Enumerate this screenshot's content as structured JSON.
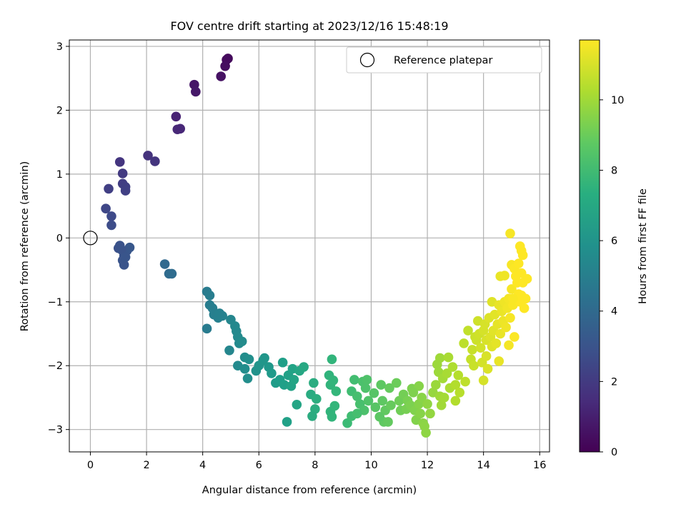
{
  "chart_data": {
    "type": "scatter",
    "title": "FOV centre drift starting at 2023/12/16 15:48:19",
    "xlabel": "Angular distance from reference (arcmin)",
    "ylabel": "Rotation from reference (arcmin)",
    "xlim": [
      -0.75,
      16.35
    ],
    "ylim": [
      -3.35,
      3.1
    ],
    "xticks": [
      "0",
      "2",
      "4",
      "6",
      "8",
      "10",
      "12",
      "14",
      "16"
    ],
    "xtick_values": [
      0,
      2,
      4,
      6,
      8,
      10,
      12,
      14,
      16
    ],
    "yticks": [
      "−3",
      "−2",
      "−1",
      "0",
      "1",
      "2",
      "3"
    ],
    "ytick_values": [
      -3,
      -2,
      -1,
      0,
      1,
      2,
      3
    ],
    "grid": true,
    "legend": {
      "placement": "top-right",
      "entries": [
        {
          "label": "Reference platepar",
          "marker": "open-circle"
        }
      ]
    },
    "reference_point": {
      "x": 0,
      "y": 0
    },
    "colorbar": {
      "label": "Hours from first FF file",
      "colormap": "viridis",
      "range": [
        0,
        11.7
      ],
      "ticks": [
        "0",
        "2",
        "4",
        "6",
        "8",
        "10"
      ],
      "tick_values": [
        0,
        2,
        4,
        6,
        8,
        10
      ]
    },
    "series": [
      {
        "columns": [
          "x",
          "y",
          "hours"
        ],
        "points": [
          [
            4.9,
            2.81
          ],
          [
            4.85,
            2.79
          ],
          [
            4.8,
            2.69
          ],
          [
            4.65,
            2.53
          ],
          [
            3.7,
            2.4
          ],
          [
            3.75,
            2.29
          ],
          [
            3.05,
            1.9
          ],
          [
            3.1,
            1.7
          ],
          [
            3.2,
            1.71
          ],
          [
            2.05,
            1.29
          ],
          [
            2.3,
            1.2
          ],
          [
            1.05,
            1.19
          ],
          [
            1.15,
            1.01
          ],
          [
            1.15,
            0.85
          ],
          [
            1.25,
            0.8
          ],
          [
            1.25,
            0.74
          ],
          [
            0.65,
            0.77
          ],
          [
            0.55,
            0.46
          ],
          [
            0.75,
            0.34
          ],
          [
            0.75,
            0.2
          ],
          [
            1.0,
            -0.16
          ],
          [
            1.05,
            -0.12
          ],
          [
            1.15,
            -0.2
          ],
          [
            1.2,
            -0.28
          ],
          [
            1.3,
            -0.2
          ],
          [
            1.4,
            -0.15
          ],
          [
            1.15,
            -0.35
          ],
          [
            1.2,
            -0.42
          ],
          [
            1.1,
            -0.18
          ],
          [
            1.25,
            -0.3
          ],
          [
            2.65,
            -0.41
          ],
          [
            2.8,
            -0.56
          ],
          [
            2.9,
            -0.56
          ],
          [
            4.15,
            -0.84
          ],
          [
            4.25,
            -0.9
          ],
          [
            4.25,
            -1.05
          ],
          [
            4.35,
            -1.1
          ],
          [
            4.4,
            -1.2
          ],
          [
            4.55,
            -1.25
          ],
          [
            4.7,
            -1.22
          ],
          [
            4.6,
            -1.18
          ],
          [
            4.15,
            -1.42
          ],
          [
            5.0,
            -1.28
          ],
          [
            5.15,
            -1.38
          ],
          [
            5.2,
            -1.46
          ],
          [
            5.25,
            -1.55
          ],
          [
            5.3,
            -1.65
          ],
          [
            5.4,
            -1.62
          ],
          [
            4.95,
            -1.76
          ],
          [
            5.5,
            -1.87
          ],
          [
            5.65,
            -1.9
          ],
          [
            5.25,
            -2.0
          ],
          [
            5.5,
            -2.05
          ],
          [
            5.6,
            -2.2
          ],
          [
            5.9,
            -2.08
          ],
          [
            6.0,
            -2.0
          ],
          [
            6.15,
            -1.92
          ],
          [
            6.2,
            -1.88
          ],
          [
            6.35,
            -2.02
          ],
          [
            6.45,
            -2.12
          ],
          [
            6.6,
            -2.27
          ],
          [
            6.75,
            -2.22
          ],
          [
            6.9,
            -2.3
          ],
          [
            6.85,
            -1.95
          ],
          [
            7.05,
            -2.15
          ],
          [
            7.2,
            -2.05
          ],
          [
            7.15,
            -2.32
          ],
          [
            7.25,
            -2.22
          ],
          [
            7.45,
            -2.08
          ],
          [
            7.6,
            -2.02
          ],
          [
            7.35,
            -2.61
          ],
          [
            7.0,
            -2.88
          ],
          [
            7.85,
            -2.45
          ],
          [
            7.95,
            -2.27
          ],
          [
            8.05,
            -2.52
          ],
          [
            8.0,
            -2.68
          ],
          [
            7.9,
            -2.79
          ],
          [
            8.5,
            -2.15
          ],
          [
            8.55,
            -2.3
          ],
          [
            8.65,
            -2.23
          ],
          [
            8.6,
            -1.9
          ],
          [
            8.75,
            -2.4
          ],
          [
            8.55,
            -2.72
          ],
          [
            8.7,
            -2.63
          ],
          [
            8.6,
            -2.8
          ],
          [
            9.15,
            -2.9
          ],
          [
            9.3,
            -2.79
          ],
          [
            9.4,
            -2.22
          ],
          [
            9.3,
            -2.4
          ],
          [
            9.5,
            -2.48
          ],
          [
            9.6,
            -2.6
          ],
          [
            9.7,
            -2.25
          ],
          [
            9.8,
            -2.35
          ],
          [
            9.75,
            -2.7
          ],
          [
            9.9,
            -2.55
          ],
          [
            9.5,
            -2.75
          ],
          [
            9.85,
            -2.22
          ],
          [
            10.1,
            -2.43
          ],
          [
            10.15,
            -2.65
          ],
          [
            10.35,
            -2.3
          ],
          [
            10.4,
            -2.55
          ],
          [
            10.5,
            -2.7
          ],
          [
            10.45,
            -2.88
          ],
          [
            10.6,
            -2.88
          ],
          [
            10.3,
            -2.8
          ],
          [
            10.7,
            -2.62
          ],
          [
            10.65,
            -2.35
          ],
          [
            10.9,
            -2.27
          ],
          [
            11.0,
            -2.55
          ],
          [
            11.05,
            -2.7
          ],
          [
            11.15,
            -2.45
          ],
          [
            11.25,
            -2.68
          ],
          [
            11.3,
            -2.55
          ],
          [
            11.4,
            -2.62
          ],
          [
            11.45,
            -2.36
          ],
          [
            11.55,
            -2.7
          ],
          [
            11.6,
            -2.85
          ],
          [
            11.7,
            -2.6
          ],
          [
            11.75,
            -2.75
          ],
          [
            11.85,
            -2.9
          ],
          [
            11.9,
            -2.95
          ],
          [
            11.95,
            -3.05
          ],
          [
            11.8,
            -2.5
          ],
          [
            11.7,
            -2.32
          ],
          [
            11.5,
            -2.42
          ],
          [
            12.0,
            -2.6
          ],
          [
            12.1,
            -2.75
          ],
          [
            12.2,
            -2.42
          ],
          [
            12.3,
            -2.3
          ],
          [
            12.45,
            -2.48
          ],
          [
            12.5,
            -2.62
          ],
          [
            12.6,
            -2.5
          ],
          [
            12.4,
            -2.1
          ],
          [
            12.45,
            -1.88
          ],
          [
            12.35,
            -1.98
          ],
          [
            12.55,
            -2.2
          ],
          [
            12.7,
            -2.12
          ],
          [
            12.8,
            -2.35
          ],
          [
            12.75,
            -1.87
          ],
          [
            12.9,
            -2.02
          ],
          [
            13.0,
            -2.3
          ],
          [
            13.1,
            -2.15
          ],
          [
            13.0,
            -2.55
          ],
          [
            13.15,
            -2.42
          ],
          [
            13.3,
            -1.65
          ],
          [
            13.35,
            -2.25
          ],
          [
            13.45,
            -1.45
          ],
          [
            13.55,
            -1.9
          ],
          [
            13.6,
            -1.75
          ],
          [
            13.65,
            -2.0
          ],
          [
            13.7,
            -1.55
          ],
          [
            13.75,
            -1.6
          ],
          [
            13.8,
            -1.3
          ],
          [
            13.85,
            -1.5
          ],
          [
            13.9,
            -1.72
          ],
          [
            13.95,
            -1.95
          ],
          [
            14.0,
            -1.45
          ],
          [
            14.0,
            -2.23
          ],
          [
            14.05,
            -1.35
          ],
          [
            14.1,
            -1.6
          ],
          [
            14.1,
            -1.85
          ],
          [
            14.15,
            -2.05
          ],
          [
            14.2,
            -1.25
          ],
          [
            14.25,
            -1.55
          ],
          [
            14.3,
            -1.7
          ],
          [
            14.3,
            -1.0
          ],
          [
            14.35,
            -1.45
          ],
          [
            14.4,
            -1.2
          ],
          [
            14.45,
            -1.65
          ],
          [
            14.5,
            -1.35
          ],
          [
            14.55,
            -1.05
          ],
          [
            14.55,
            -1.93
          ],
          [
            14.6,
            -1.5
          ],
          [
            14.65,
            -1.15
          ],
          [
            14.7,
            -1.3
          ],
          [
            14.75,
            -1.0
          ],
          [
            14.8,
            -1.4
          ],
          [
            14.85,
            -1.1
          ],
          [
            14.9,
            -0.95
          ],
          [
            14.9,
            -1.68
          ],
          [
            14.95,
            -1.25
          ],
          [
            15.0,
            -0.8
          ],
          [
            15.05,
            -1.05
          ],
          [
            15.1,
            -1.55
          ],
          [
            15.0,
            -0.42
          ],
          [
            15.1,
            -0.48
          ],
          [
            15.15,
            -0.6
          ],
          [
            15.2,
            -0.7
          ],
          [
            15.25,
            -0.88
          ],
          [
            15.3,
            -1.0
          ],
          [
            15.35,
            -0.9
          ],
          [
            15.35,
            -0.55
          ],
          [
            15.4,
            -0.7
          ],
          [
            15.45,
            -1.1
          ],
          [
            15.5,
            -0.95
          ],
          [
            15.55,
            -0.64
          ],
          [
            14.6,
            -0.6
          ],
          [
            14.75,
            -0.59
          ],
          [
            14.95,
            0.07
          ],
          [
            15.3,
            -0.13
          ],
          [
            15.35,
            -0.2
          ],
          [
            15.4,
            -0.27
          ],
          [
            15.25,
            -0.4
          ],
          [
            15.05,
            -0.95
          ]
        ]
      }
    ]
  }
}
